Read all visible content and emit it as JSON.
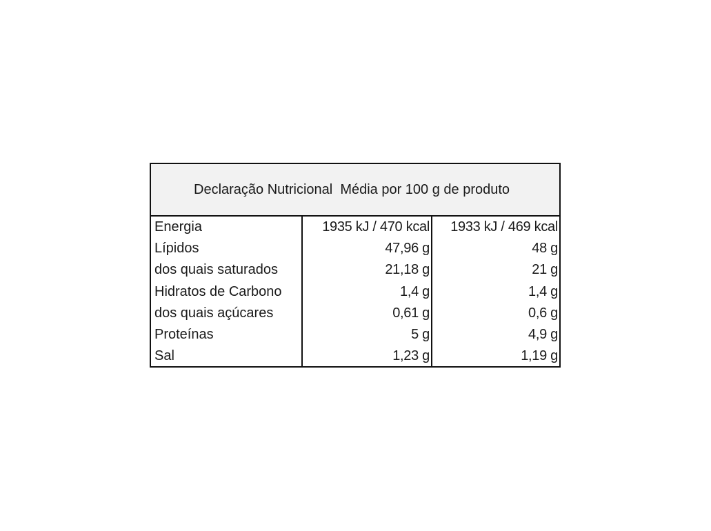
{
  "table": {
    "title": "Declaração Nutricional  Média por 100 g de produto",
    "rows": [
      {
        "label": "Energia",
        "v1": "1935 kJ / 470 kcal",
        "v2": "1933 kJ / 469 kcal"
      },
      {
        "label": "Lípidos",
        "v1": "47,96 g",
        "v2": "48 g"
      },
      {
        "label": "dos quais saturados",
        "v1": "21,18 g",
        "v2": "21 g"
      },
      {
        "label": "Hidratos de Carbono",
        "v1": "1,4 g",
        "v2": "1,4 g"
      },
      {
        "label": "dos quais açúcares",
        "v1": "0,61 g",
        "v2": "0,6 g"
      },
      {
        "label": "Proteínas",
        "v1": "5 g",
        "v2": "4,9 g"
      },
      {
        "label": "Sal",
        "v1": "1,23 g",
        "v2": "1,19 g"
      }
    ]
  }
}
